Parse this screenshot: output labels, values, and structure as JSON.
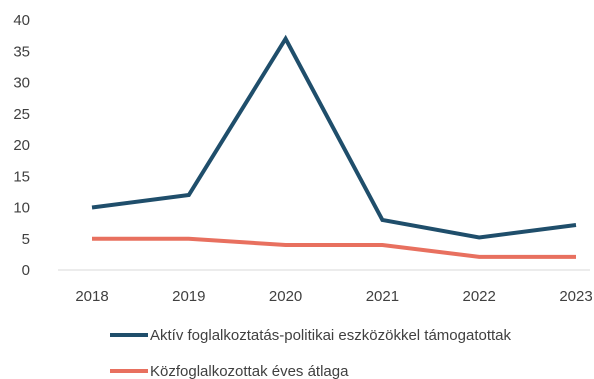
{
  "chart_data": {
    "type": "line",
    "title": "",
    "xlabel": "",
    "ylabel": "",
    "categories": [
      "2018",
      "2019",
      "2020",
      "2021",
      "2022",
      "2023"
    ],
    "ylim": [
      0,
      40
    ],
    "yticks": [
      "0",
      "5",
      "10",
      "15",
      "20",
      "25",
      "30",
      "35",
      "40"
    ],
    "grid": false,
    "legend_position": "bottom",
    "series": [
      {
        "name": "Aktív foglalkoztatás-politikai eszközökkel támogatottak",
        "values": [
          10,
          12,
          37,
          8,
          5.2,
          7.2
        ],
        "color": "#1f4e6b"
      },
      {
        "name": "Közfoglalkozottak éves átlaga",
        "values": [
          5,
          5,
          4,
          4,
          2.1,
          2.1
        ],
        "color": "#e8705f"
      }
    ]
  }
}
